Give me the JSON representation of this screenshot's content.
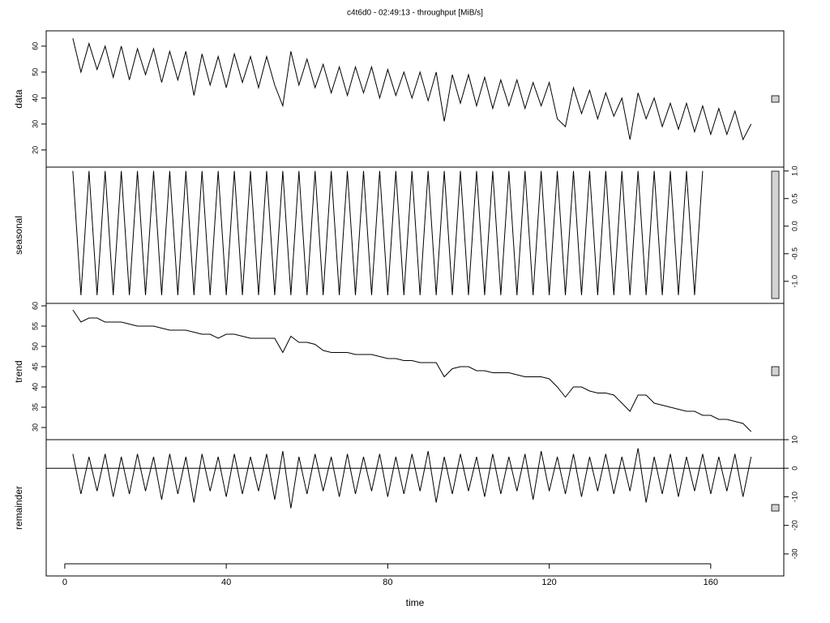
{
  "chart_data": {
    "type": "stl",
    "title": "c4t6d0 - 02:49:13 - throughput [MiB/s]",
    "xlabel": "time",
    "xlim": [
      -4.6,
      178.1
    ],
    "xticks": [
      0,
      40,
      80,
      120,
      160
    ],
    "x": [
      2,
      4,
      6,
      8,
      10,
      12,
      14,
      16,
      18,
      20,
      22,
      24,
      26,
      28,
      30,
      32,
      34,
      36,
      38,
      40,
      42,
      44,
      46,
      48,
      50,
      52,
      54,
      56,
      58,
      60,
      62,
      64,
      66,
      68,
      70,
      72,
      74,
      76,
      78,
      80,
      82,
      84,
      86,
      88,
      90,
      92,
      94,
      96,
      98,
      100,
      102,
      104,
      106,
      108,
      110,
      112,
      114,
      116,
      118,
      120,
      122,
      124,
      126,
      128,
      130,
      132,
      134,
      136,
      138,
      140,
      142,
      144,
      146,
      148,
      150,
      152,
      154,
      156,
      158,
      160,
      162,
      164,
      166,
      168,
      170
    ],
    "panels": [
      {
        "ylabel": "data",
        "axis_side": "left",
        "ylim": [
          13.4,
          65.9
        ],
        "yticks": [
          20,
          30,
          40,
          50,
          60
        ],
        "values": [
          63,
          50,
          61,
          51,
          60,
          48,
          60,
          47,
          59,
          49,
          59,
          46,
          58,
          47,
          58,
          41,
          57,
          45,
          56,
          44,
          57,
          46,
          56,
          44,
          56,
          45,
          37,
          58,
          45,
          55,
          44,
          53,
          42,
          52,
          41,
          52,
          42,
          52,
          40,
          51,
          41,
          50,
          40,
          50,
          39,
          50,
          31,
          49,
          38,
          49,
          37,
          48,
          36,
          47,
          37,
          47,
          36,
          46,
          37,
          46,
          32,
          29,
          44,
          34,
          43,
          32,
          42,
          33,
          40,
          24,
          42,
          32,
          40,
          29,
          38,
          28,
          38,
          27,
          37,
          26,
          36,
          26,
          35,
          24,
          30
        ]
      },
      {
        "ylabel": "seasonal",
        "axis_side": "right",
        "ylim": [
          -1.4,
          1.07
        ],
        "yticks": [
          {
            "value": -1,
            "label": "-1.0"
          },
          -0.5,
          {
            "value": 0,
            "label": "0.0"
          },
          0.5,
          {
            "value": 1,
            "label": "1.0"
          }
        ],
        "values": [
          1,
          -1.25,
          1,
          -1.25,
          1,
          -1.25,
          1,
          -1.25,
          1,
          -1.25,
          1,
          -1.25,
          1,
          -1.25,
          1,
          -1.25,
          1,
          -1.25,
          1,
          -1.25,
          1,
          -1.25,
          1,
          -1.25,
          1,
          -1.25,
          1,
          -1.25,
          1,
          -1.25,
          1,
          -1.25,
          1,
          -1.25,
          1,
          -1.25,
          1,
          -1.25,
          1,
          -1.25,
          1,
          -1.25,
          1,
          -1.25,
          1,
          -1.25,
          1,
          -1.25,
          1,
          -1.25,
          1,
          -1.25,
          1,
          -1.25,
          1,
          -1.25,
          1,
          -1.25,
          1,
          -1.25,
          1,
          -1.25,
          1,
          -1.25,
          1,
          -1.25,
          1,
          -1.25,
          1,
          -1.25,
          1,
          -1.25,
          1,
          -1.25,
          1,
          -1.25,
          1,
          -1.25,
          1
        ]
      },
      {
        "ylabel": "trend",
        "axis_side": "left",
        "ylim": [
          27,
          60.6
        ],
        "yticks": [
          30,
          35,
          40,
          45,
          50,
          55,
          60
        ],
        "values": [
          59,
          56,
          57,
          57,
          56,
          56,
          56,
          55.5,
          55,
          55,
          55,
          54.5,
          54,
          54,
          54,
          53.5,
          53,
          53,
          52,
          53,
          53,
          52.5,
          52,
          52,
          52,
          52,
          48.5,
          52.5,
          51,
          51,
          50.5,
          49,
          48.5,
          48.5,
          48.5,
          48,
          48,
          48,
          47.5,
          47,
          47,
          46.5,
          46.5,
          46,
          46,
          46,
          42.5,
          44.5,
          45,
          45,
          44,
          44,
          43.5,
          43.5,
          43.5,
          43,
          42.5,
          42.5,
          42.5,
          42,
          40,
          37.5,
          40,
          40,
          39,
          38.5,
          38.5,
          38,
          36,
          34,
          38,
          38,
          36,
          35.5,
          35,
          34.5,
          34,
          34,
          33,
          33,
          32,
          32,
          31.5,
          31,
          29
        ]
      },
      {
        "ylabel": "remainder",
        "axis_side": "right",
        "ylim": [
          -37.7,
          10
        ],
        "yticks": [
          -30,
          -20,
          -10,
          0,
          10
        ],
        "hline": 0,
        "values": [
          5,
          -9,
          4,
          -8,
          5,
          -10,
          4,
          -9,
          5,
          -8,
          4,
          -11,
          5,
          -9,
          4,
          -12,
          5,
          -8,
          4,
          -10,
          5,
          -9,
          4,
          -8,
          5,
          -11,
          6,
          -14,
          4,
          -9,
          5,
          -8,
          4,
          -10,
          5,
          -9,
          4,
          -8,
          5,
          -10,
          4,
          -9,
          5,
          -8,
          6,
          -12,
          4,
          -9,
          5,
          -8,
          4,
          -10,
          5,
          -9,
          4,
          -8,
          5,
          -11,
          6,
          -8,
          4,
          -9,
          5,
          -10,
          4,
          -8,
          5,
          -9,
          4,
          -8,
          7,
          -12,
          4,
          -9,
          5,
          -10,
          4,
          -8,
          5,
          -9,
          4,
          -8,
          5,
          -10,
          4
        ]
      }
    ]
  }
}
